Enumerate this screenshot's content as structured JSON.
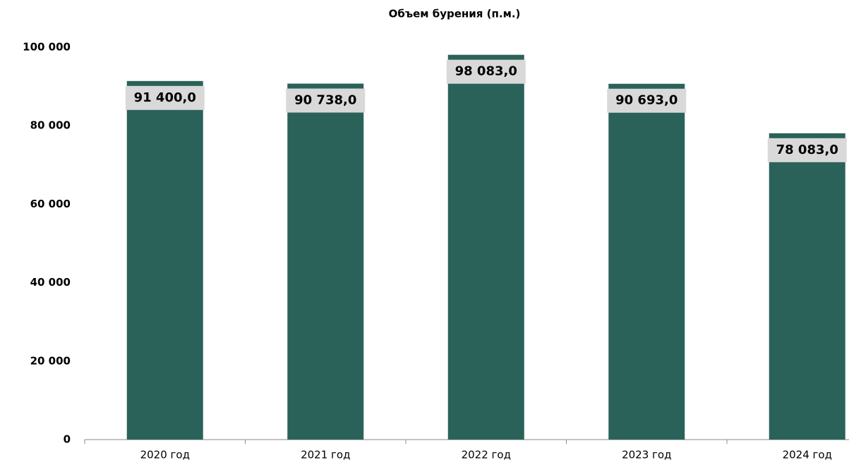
{
  "chart_data": {
    "type": "bar",
    "title": "Объем бурения (п.м.)",
    "categories": [
      "2020 год",
      "2021 год",
      "2022 год",
      "2023 год",
      "2024 год"
    ],
    "values": [
      91400,
      90738,
      98083,
      90693,
      78083
    ],
    "value_labels": [
      "91 400,0",
      "90 738,0",
      "98 083,0",
      "90 693,0",
      "78 083,0"
    ],
    "color": "#2a6259",
    "ylim": [
      0,
      100000
    ],
    "yticks": [
      0,
      {
        "value": 20000,
        "label": "20 000"
      },
      {
        "value": 40000,
        "label": "40 000"
      },
      {
        "value": 60000,
        "label": "60 000"
      },
      {
        "value": 80000,
        "label": "80 000"
      },
      {
        "value": 100000,
        "label": "100 000"
      }
    ],
    "grid": false
  }
}
